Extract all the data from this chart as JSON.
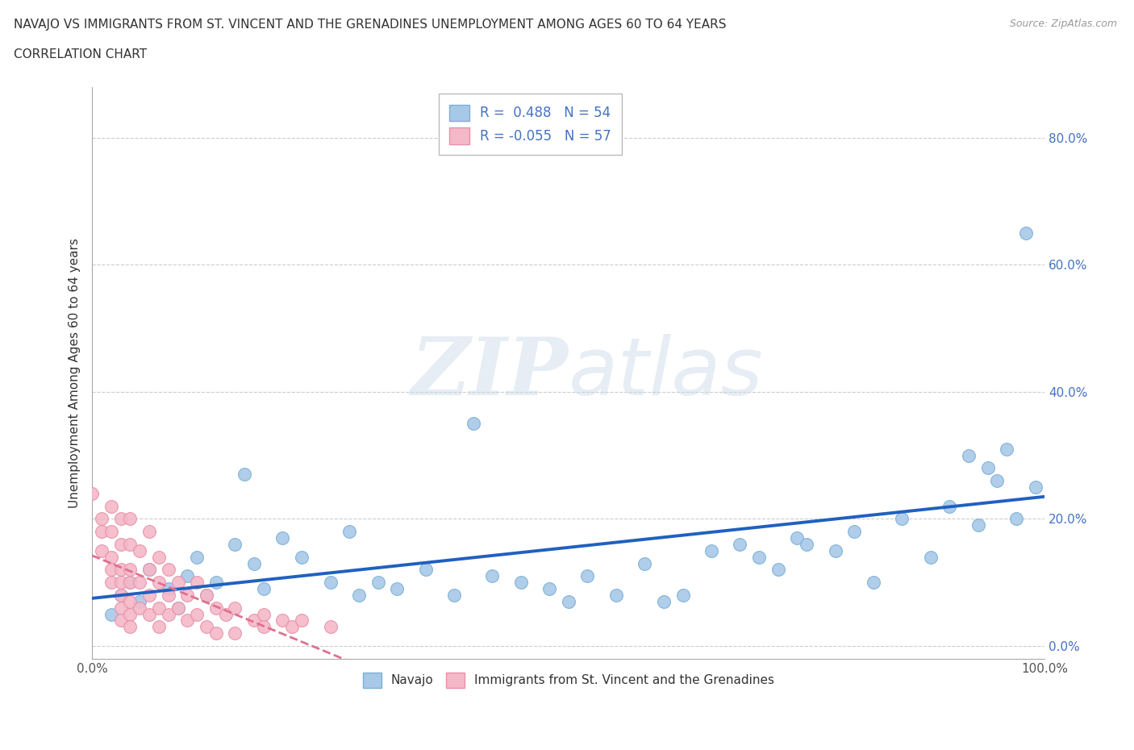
{
  "title_line1": "NAVAJO VS IMMIGRANTS FROM ST. VINCENT AND THE GRENADINES UNEMPLOYMENT AMONG AGES 60 TO 64 YEARS",
  "title_line2": "CORRELATION CHART",
  "source": "Source: ZipAtlas.com",
  "ylabel": "Unemployment Among Ages 60 to 64 years",
  "xlim": [
    0,
    1.0
  ],
  "ylim": [
    -0.02,
    0.88
  ],
  "yticks": [
    0.0,
    0.2,
    0.4,
    0.6,
    0.8
  ],
  "xtick_labels": [
    "0.0%",
    "100.0%"
  ],
  "ytick_labels": [
    "0.0%",
    "20.0%",
    "40.0%",
    "60.0%",
    "80.0%"
  ],
  "navajo_R": 0.488,
  "navajo_N": 54,
  "svg_R": -0.055,
  "svg_N": 57,
  "navajo_color": "#a8c8e8",
  "navajo_edge_color": "#7ab0d4",
  "svg_color": "#f4b8c8",
  "svg_edge_color": "#e890a8",
  "trend_navajo_color": "#2060c0",
  "trend_svg_color": "#e07090",
  "watermark_zip": "ZIP",
  "watermark_atlas": "atlas",
  "navajo_x": [
    0.02,
    0.03,
    0.04,
    0.05,
    0.06,
    0.08,
    0.09,
    0.1,
    0.11,
    0.12,
    0.13,
    0.15,
    0.16,
    0.17,
    0.18,
    0.2,
    0.22,
    0.25,
    0.27,
    0.28,
    0.3,
    0.32,
    0.35,
    0.38,
    0.4,
    0.42,
    0.45,
    0.48,
    0.5,
    0.52,
    0.55,
    0.58,
    0.6,
    0.62,
    0.65,
    0.68,
    0.7,
    0.72,
    0.74,
    0.75,
    0.78,
    0.8,
    0.82,
    0.85,
    0.88,
    0.9,
    0.92,
    0.93,
    0.94,
    0.95,
    0.96,
    0.97,
    0.98,
    0.99
  ],
  "navajo_y": [
    0.05,
    0.08,
    0.1,
    0.07,
    0.12,
    0.09,
    0.06,
    0.11,
    0.14,
    0.08,
    0.1,
    0.16,
    0.27,
    0.13,
    0.09,
    0.17,
    0.14,
    0.1,
    0.18,
    0.08,
    0.1,
    0.09,
    0.12,
    0.08,
    0.35,
    0.11,
    0.1,
    0.09,
    0.07,
    0.11,
    0.08,
    0.13,
    0.07,
    0.08,
    0.15,
    0.16,
    0.14,
    0.12,
    0.17,
    0.16,
    0.15,
    0.18,
    0.1,
    0.2,
    0.14,
    0.22,
    0.3,
    0.19,
    0.28,
    0.26,
    0.31,
    0.2,
    0.65,
    0.25
  ],
  "svg_x": [
    0.0,
    0.01,
    0.01,
    0.01,
    0.02,
    0.02,
    0.02,
    0.02,
    0.02,
    0.03,
    0.03,
    0.03,
    0.03,
    0.03,
    0.03,
    0.03,
    0.04,
    0.04,
    0.04,
    0.04,
    0.04,
    0.04,
    0.04,
    0.05,
    0.05,
    0.05,
    0.06,
    0.06,
    0.06,
    0.06,
    0.07,
    0.07,
    0.07,
    0.07,
    0.08,
    0.08,
    0.08,
    0.09,
    0.09,
    0.1,
    0.1,
    0.11,
    0.11,
    0.12,
    0.12,
    0.13,
    0.13,
    0.14,
    0.15,
    0.15,
    0.17,
    0.18,
    0.18,
    0.2,
    0.21,
    0.22,
    0.25
  ],
  "svg_y": [
    0.24,
    0.2,
    0.15,
    0.18,
    0.22,
    0.18,
    0.14,
    0.12,
    0.1,
    0.2,
    0.16,
    0.12,
    0.1,
    0.08,
    0.06,
    0.04,
    0.2,
    0.16,
    0.12,
    0.1,
    0.07,
    0.05,
    0.03,
    0.15,
    0.1,
    0.06,
    0.18,
    0.12,
    0.08,
    0.05,
    0.14,
    0.1,
    0.06,
    0.03,
    0.12,
    0.08,
    0.05,
    0.1,
    0.06,
    0.08,
    0.04,
    0.1,
    0.05,
    0.08,
    0.03,
    0.06,
    0.02,
    0.05,
    0.06,
    0.02,
    0.04,
    0.05,
    0.03,
    0.04,
    0.03,
    0.04,
    0.03
  ]
}
